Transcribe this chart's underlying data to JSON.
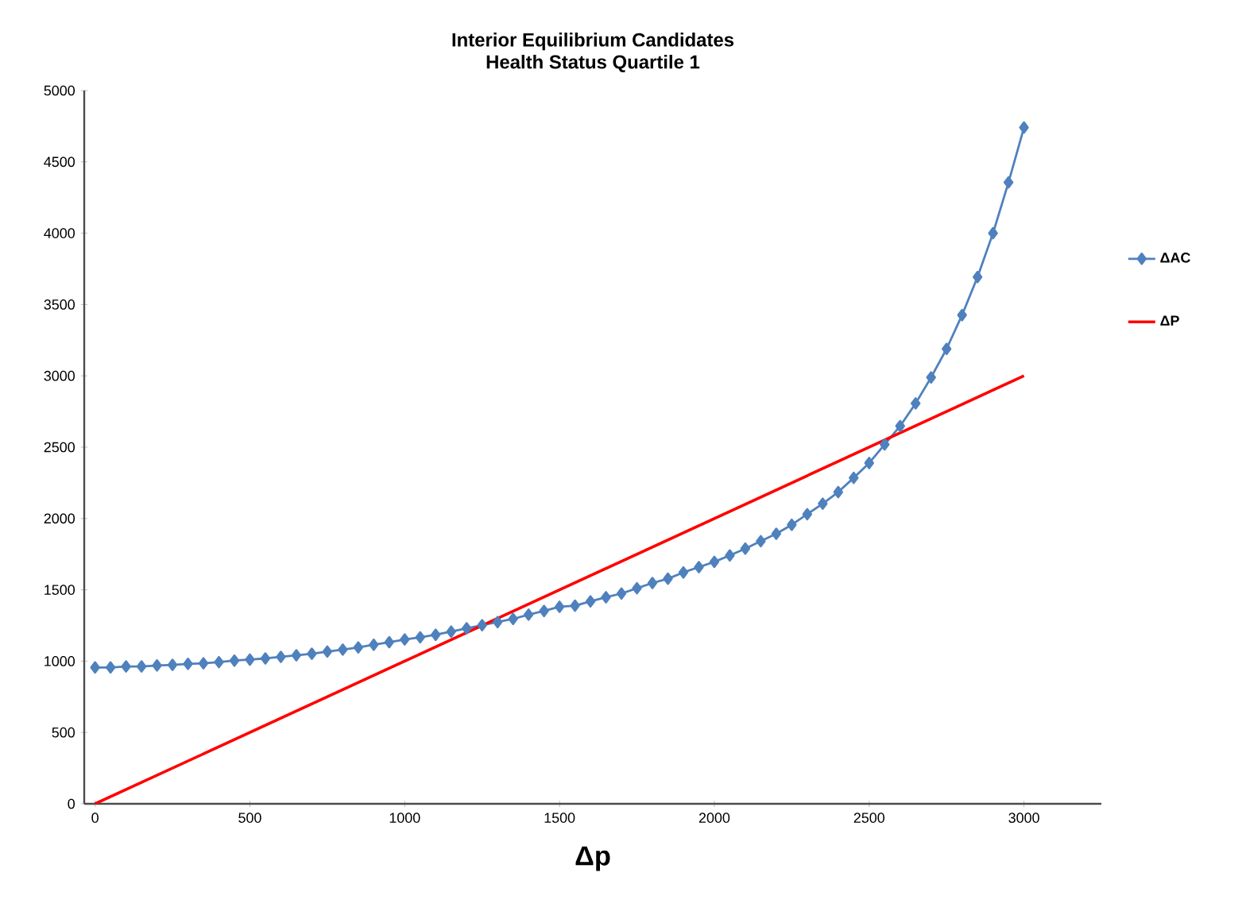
{
  "chart_data": {
    "type": "line",
    "title": "Interior Equilibrium Candidates",
    "subtitle": "Health Status Quartile 1",
    "xlabel": "Δp",
    "x": [
      0,
      50,
      100,
      150,
      200,
      250,
      300,
      350,
      400,
      450,
      500,
      550,
      600,
      650,
      700,
      750,
      800,
      850,
      900,
      950,
      1000,
      1050,
      1100,
      1150,
      1200,
      1250,
      1300,
      1350,
      1400,
      1450,
      1500,
      1550,
      1600,
      1650,
      1700,
      1750,
      1800,
      1850,
      1900,
      1950,
      2000,
      2050,
      2100,
      2150,
      2200,
      2250,
      2300,
      2350,
      2400,
      2450,
      2500,
      2550,
      2600,
      2650,
      2700,
      2750,
      2800,
      2850,
      2900,
      2950,
      3000
    ],
    "series": [
      {
        "name": "ΔAC",
        "color": "#4f81bd",
        "marker": "diamond",
        "values": [
          956,
          956,
          963,
          963,
          970,
          974,
          981,
          985,
          993,
          1004,
          1011,
          1019,
          1030,
          1041,
          1052,
          1067,
          1081,
          1096,
          1115,
          1133,
          1152,
          1167,
          1185,
          1207,
          1230,
          1252,
          1274,
          1296,
          1326,
          1352,
          1381,
          1389,
          1419,
          1448,
          1474,
          1511,
          1548,
          1578,
          1622,
          1659,
          1696,
          1741,
          1789,
          1841,
          1893,
          1956,
          2030,
          2104,
          2185,
          2285,
          2389,
          2519,
          2648,
          2807,
          2989,
          3189,
          3426,
          3693,
          4000,
          4356,
          4741
        ]
      },
      {
        "name": "ΔP",
        "color": "#ff0000",
        "marker": "none",
        "x": [
          0,
          3000
        ],
        "values": [
          0,
          3000
        ]
      }
    ],
    "xlim": [
      -35,
      3250
    ],
    "ylim": [
      0,
      5000
    ],
    "xticks": [
      0,
      500,
      1000,
      1500,
      2000,
      2500,
      3000
    ],
    "yticks": [
      0,
      500,
      1000,
      1500,
      2000,
      2500,
      3000,
      3500,
      4000,
      4500,
      5000
    ],
    "grid": false,
    "legend": "right"
  }
}
